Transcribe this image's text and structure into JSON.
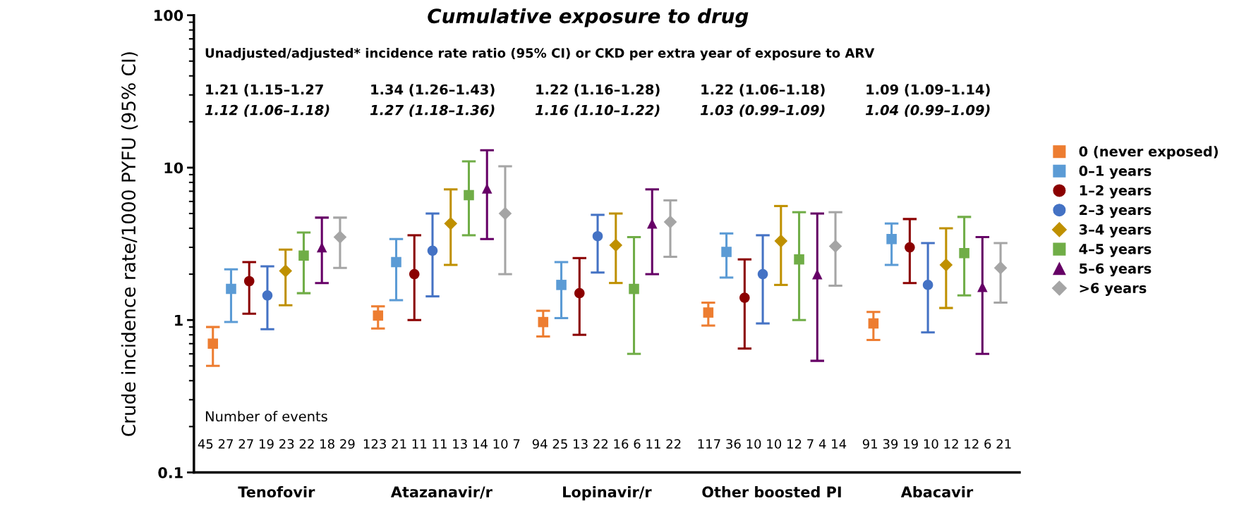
{
  "chart_data": {
    "type": "scatter",
    "title": "Cumulative exposure to drug",
    "ylabel": "Crude incidence rate/1000 PYFU (95% CI)",
    "categories": [
      "Tenofovir",
      "Atazanavir/r",
      "Lopinavir/r",
      "Other boosted PI",
      "Abacavir"
    ],
    "log": "y",
    "ylim": [
      0.1,
      100
    ],
    "yticks": [
      0.1,
      1,
      10,
      100
    ],
    "grid": false,
    "legend": "right",
    "series": [
      {
        "name": "0 (never exposed)",
        "color": "#ed7d31",
        "marker": "square",
        "values": [
          0.7,
          1.07,
          0.97,
          1.12,
          0.95
        ],
        "errors": [
          [
            0.5,
            0.9
          ],
          [
            0.88,
            1.23
          ],
          [
            0.78,
            1.15
          ],
          [
            0.92,
            1.3
          ],
          [
            0.74,
            1.13
          ]
        ]
      },
      {
        "name": "0–1 years",
        "color": "#5b9bd5",
        "marker": "square",
        "values": [
          1.6,
          2.4,
          1.7,
          2.8,
          3.4
        ],
        "errors": [
          [
            0.97,
            2.15
          ],
          [
            1.35,
            3.4
          ],
          [
            1.03,
            2.4
          ],
          [
            1.9,
            3.7
          ],
          [
            2.3,
            4.3
          ]
        ]
      },
      {
        "name": "1–2 years",
        "color": "#8b0000",
        "marker": "circle",
        "values": [
          1.8,
          2.0,
          1.5,
          1.4,
          3.0
        ],
        "errors": [
          [
            1.1,
            2.4
          ],
          [
            1.0,
            3.6
          ],
          [
            0.8,
            2.55
          ],
          [
            0.65,
            2.5
          ],
          [
            1.75,
            4.6
          ]
        ]
      },
      {
        "name": "2–3 years",
        "color": "#4472c4",
        "marker": "circle",
        "values": [
          1.45,
          2.85,
          3.55,
          2.0,
          1.7
        ],
        "errors": [
          [
            0.87,
            2.25
          ],
          [
            1.43,
            5.0
          ],
          [
            2.05,
            4.9
          ],
          [
            0.95,
            3.6
          ],
          [
            0.83,
            3.2
          ]
        ]
      },
      {
        "name": "3–4 years",
        "color": "#bf9000",
        "marker": "diamond",
        "values": [
          2.1,
          4.3,
          3.1,
          3.3,
          2.3
        ],
        "errors": [
          [
            1.25,
            2.9
          ],
          [
            2.3,
            7.2
          ],
          [
            1.75,
            5.0
          ],
          [
            1.7,
            5.6
          ],
          [
            1.2,
            4.0
          ]
        ]
      },
      {
        "name": "4–5 years",
        "color": "#70ad47",
        "marker": "square",
        "values": [
          2.65,
          6.6,
          1.6,
          2.5,
          2.75
        ],
        "errors": [
          [
            1.5,
            3.75
          ],
          [
            3.6,
            11
          ],
          [
            0.6,
            3.5
          ],
          [
            1.0,
            5.1
          ],
          [
            1.45,
            4.75
          ]
        ]
      },
      {
        "name": "5–6 years",
        "color": "#660066",
        "marker": "triangle",
        "values": [
          3.0,
          7.3,
          4.3,
          2.0,
          1.65
        ],
        "errors": [
          [
            1.75,
            4.7
          ],
          [
            3.4,
            13
          ],
          [
            2.0,
            7.2
          ],
          [
            0.54,
            5.0
          ],
          [
            0.6,
            3.5
          ]
        ]
      },
      {
        "name": ">6 years",
        "color": "#a5a5a5",
        "marker": "diamond",
        "values": [
          3.5,
          5.0,
          4.4,
          3.05,
          2.2
        ],
        "errors": [
          [
            2.2,
            4.7
          ],
          [
            2.0,
            10.2
          ],
          [
            2.6,
            6.1
          ],
          [
            1.68,
            5.1
          ],
          [
            1.3,
            3.2
          ]
        ]
      }
    ],
    "annotations": [
      "Unadjusted/adjusted* incidence rate ratio (95% CI) or CKD per extra year of exposure to ARV",
      "1.21 (1.15–1.27",
      "1.12 (1.06–1.18)",
      "1.34 (1.26–1.43)",
      "1.27 (1.18–1.36)",
      "1.22 (1.16–1.28)",
      "1.16 (1.10–1.22)",
      "1.22 (1.06–1.18)",
      "1.03 (0.99–1.09)",
      "1.09 (1.09–1.14)",
      "1.04 (0.99–1.09)",
      "Number of events",
      "45 27 27 19 23 22 18 29",
      "123 21 11 11 13 14 10 7",
      "94 25 13 22 16 6 11 22",
      "117 36 10 10 12 7 4 14",
      "91 39 19 10 12 12 6 21"
    ]
  }
}
